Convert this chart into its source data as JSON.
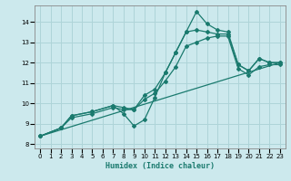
{
  "xlabel": "Humidex (Indice chaleur)",
  "xlim": [
    -0.5,
    23.5
  ],
  "ylim": [
    7.8,
    14.8
  ],
  "bg_color": "#cce9ed",
  "grid_color": "#aed4d8",
  "line_color": "#1a7a6e",
  "xticks": [
    0,
    1,
    2,
    3,
    4,
    5,
    6,
    7,
    8,
    9,
    10,
    11,
    12,
    13,
    14,
    15,
    16,
    17,
    18,
    19,
    20,
    21,
    22,
    23
  ],
  "yticks": [
    8,
    9,
    10,
    11,
    12,
    13,
    14
  ],
  "series": [
    {
      "x": [
        0,
        2,
        3,
        5,
        7,
        8,
        9,
        10,
        11,
        12,
        13,
        14,
        15,
        16,
        17,
        18,
        19,
        20,
        21,
        22,
        23
      ],
      "y": [
        8.4,
        8.8,
        9.4,
        9.6,
        9.9,
        9.5,
        8.9,
        9.2,
        10.3,
        11.5,
        12.5,
        13.5,
        14.5,
        13.9,
        13.6,
        13.5,
        11.9,
        11.6,
        12.2,
        12.0,
        12.0
      ]
    },
    {
      "x": [
        0,
        2,
        3,
        5,
        7,
        8,
        9,
        10,
        11,
        12,
        13,
        14,
        15,
        16,
        17,
        18,
        19,
        20,
        21,
        22,
        23
      ],
      "y": [
        8.4,
        8.8,
        9.4,
        9.6,
        9.9,
        9.8,
        9.7,
        10.4,
        10.7,
        11.5,
        12.5,
        13.5,
        13.6,
        13.5,
        13.4,
        13.4,
        11.9,
        11.6,
        12.2,
        12.0,
        12.0
      ]
    },
    {
      "x": [
        0,
        2,
        3,
        5,
        7,
        8,
        9,
        10,
        11,
        12,
        13,
        14,
        15,
        16,
        17,
        18,
        19,
        20,
        21,
        22,
        23
      ],
      "y": [
        8.4,
        8.8,
        9.3,
        9.5,
        9.8,
        9.7,
        9.7,
        10.2,
        10.5,
        11.1,
        11.8,
        12.8,
        13.0,
        13.2,
        13.3,
        13.3,
        11.7,
        11.4,
        11.8,
        11.9,
        11.9
      ]
    },
    {
      "x": [
        0,
        23
      ],
      "y": [
        8.4,
        12.0
      ]
    }
  ]
}
